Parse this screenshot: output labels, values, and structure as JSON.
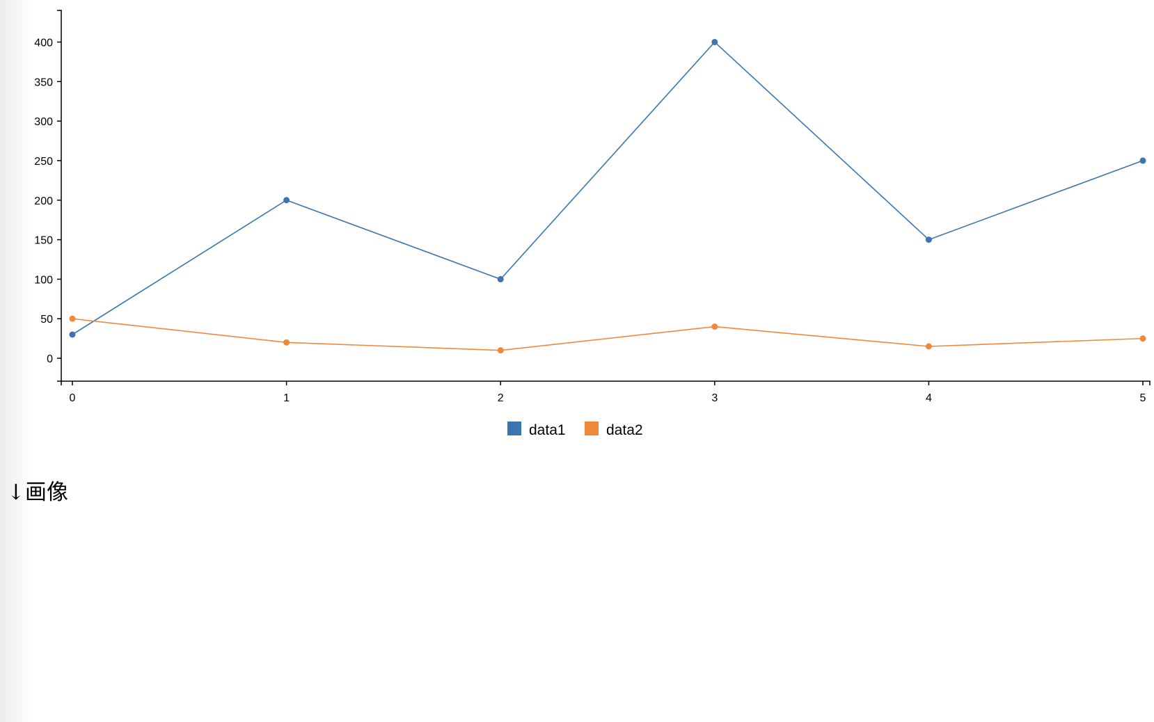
{
  "chart_data": {
    "type": "line",
    "x": [
      0,
      1,
      2,
      3,
      4,
      5
    ],
    "series": [
      {
        "name": "data1",
        "values": [
          30,
          200,
          100,
          400,
          150,
          250
        ],
        "color": "#3a75b0"
      },
      {
        "name": "data2",
        "values": [
          50,
          20,
          10,
          40,
          15,
          25
        ],
        "color": "#f0883a"
      }
    ],
    "x_ticks": [
      "0",
      "1",
      "2",
      "3",
      "4",
      "5"
    ],
    "y_ticks": [
      "0",
      "50",
      "100",
      "150",
      "200",
      "250",
      "300",
      "350",
      "400"
    ],
    "xlim": [
      0,
      5
    ],
    "ylim": [
      -29,
      440
    ],
    "grid": false,
    "legend": "bottom-center"
  },
  "heading": "↓画像"
}
